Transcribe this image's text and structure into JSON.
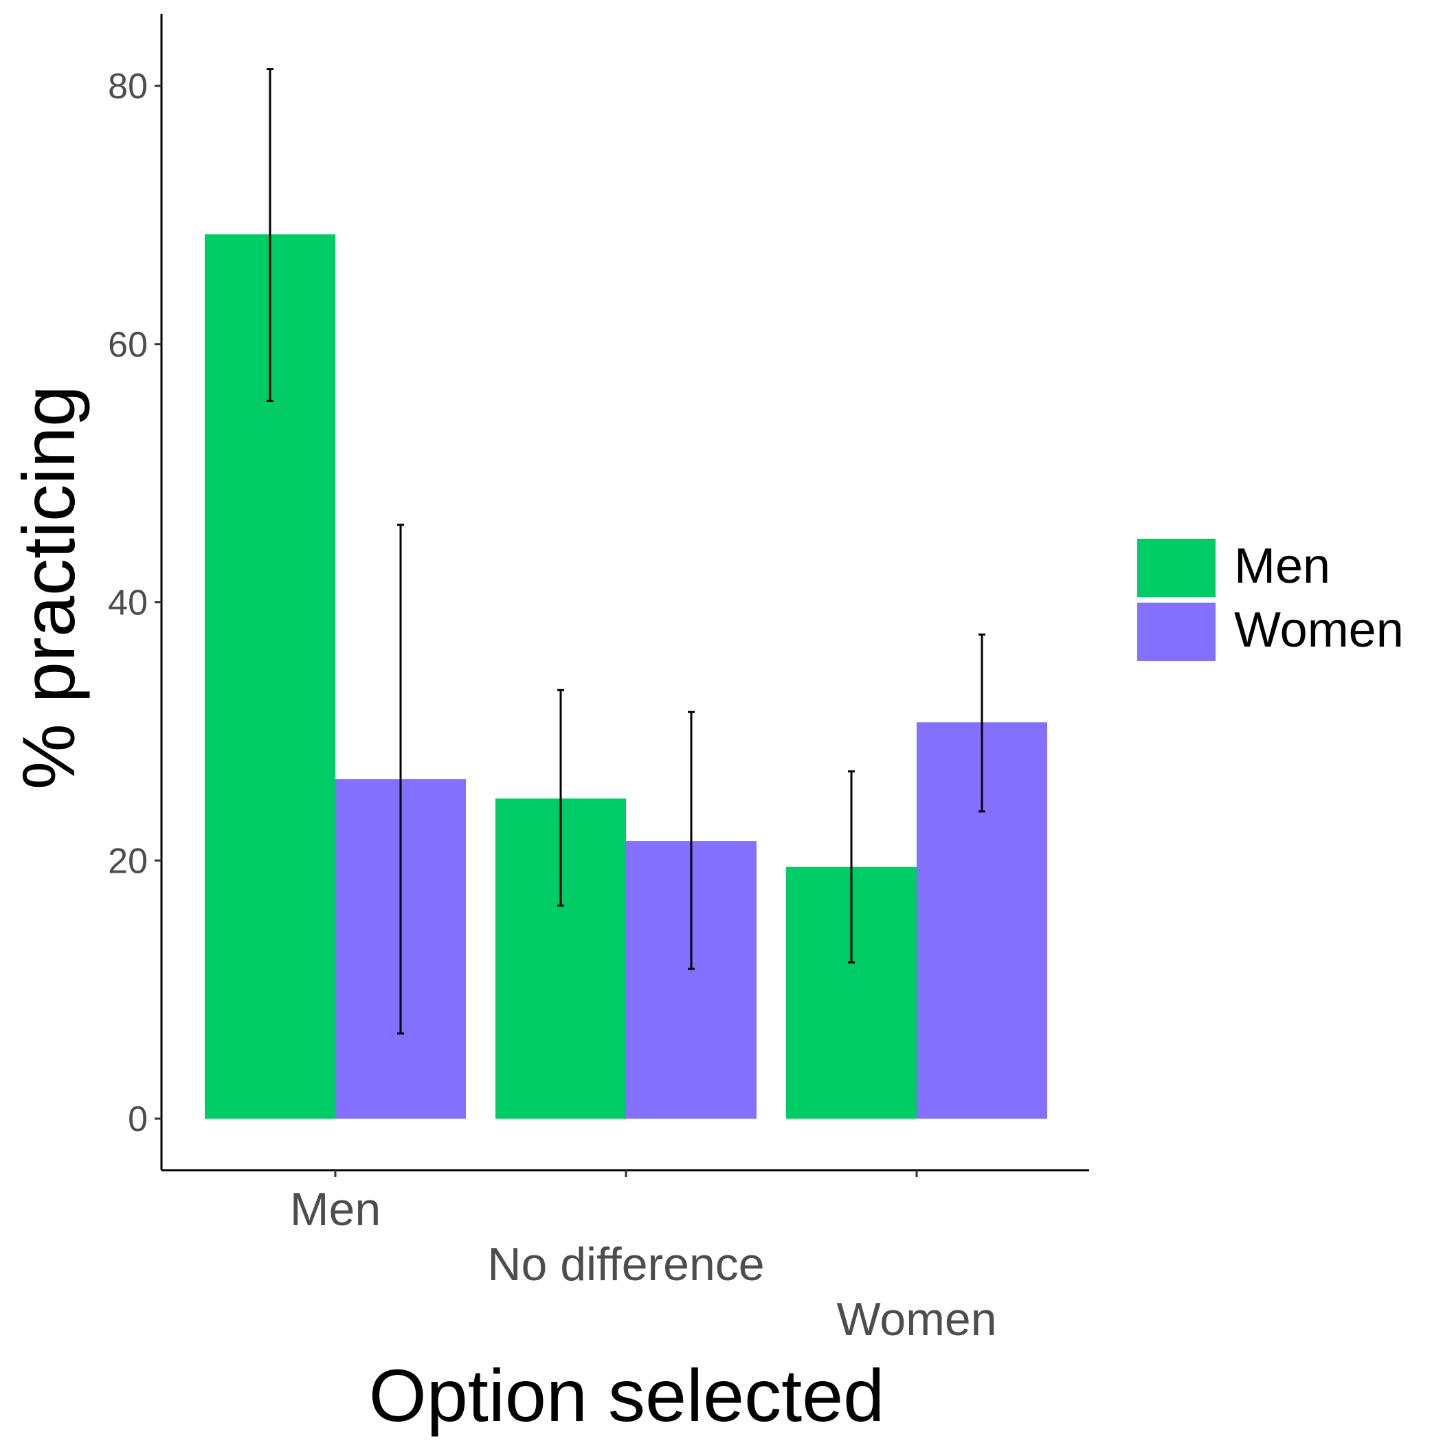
{
  "chart_data": {
    "type": "bar",
    "title": "",
    "xlabel": "Option selected",
    "ylabel": "% practicing",
    "ylim": [
      -4,
      85
    ],
    "yticks": [
      0,
      20,
      40,
      60,
      80
    ],
    "ytick_labels": [
      "0",
      "20",
      "40",
      "60",
      "80"
    ],
    "categories": [
      "Men",
      "No difference",
      "Women"
    ],
    "series": [
      {
        "name": "Men",
        "color": "#00cc66",
        "values": [
          68.5,
          24.8,
          19.5
        ],
        "error_low": [
          55.6,
          16.5,
          12.1
        ],
        "error_high": [
          81.3,
          33.2,
          26.9
        ]
      },
      {
        "name": "Women",
        "color": "#8370ff",
        "values": [
          26.3,
          21.5,
          30.7
        ],
        "error_low": [
          6.6,
          11.6,
          23.8
        ],
        "error_high": [
          46.0,
          31.5,
          37.5
        ]
      }
    ],
    "grid": false,
    "legend_position": "right",
    "x_tick_labels_staggered": true
  }
}
